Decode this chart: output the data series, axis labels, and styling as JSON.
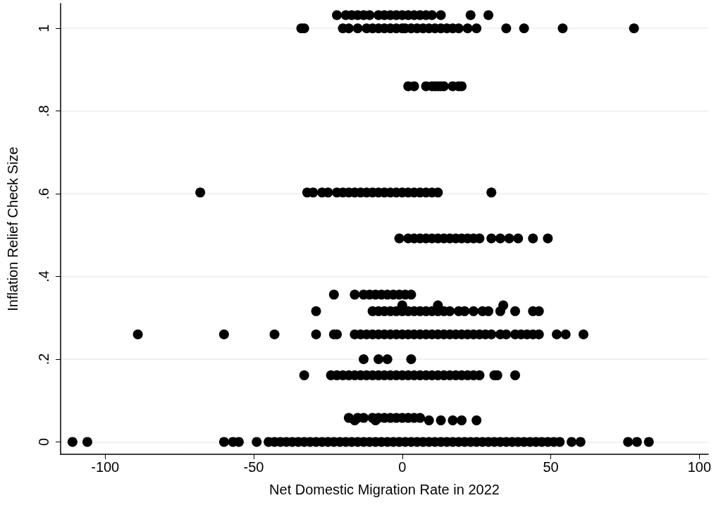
{
  "chart_data": {
    "type": "scatter",
    "xlabel": "Net Domestic Migration Rate in 2022",
    "ylabel": "Inflation Relief Check Size",
    "xlim": [
      -115,
      103
    ],
    "xticks": [
      -100,
      -50,
      0,
      50,
      100
    ],
    "ylim": [
      -0.03,
      1.06
    ],
    "yticks": [
      0,
      {
        "value": 0.2,
        "label": ".2"
      },
      {
        "value": 0.4,
        "label": ".4"
      },
      {
        "value": 0.6,
        "label": ".6"
      },
      {
        "value": 0.8,
        "label": ".8"
      },
      1
    ],
    "grid": "y",
    "marker": "circle",
    "series": [
      {
        "color": "#000000",
        "x": [
          -22,
          -19,
          -17,
          -15,
          -13,
          -11,
          -8,
          -6,
          -4,
          -2,
          0,
          2,
          4,
          6,
          8,
          10,
          13,
          23,
          29,
          -34,
          -33,
          -20,
          -18,
          -15,
          -12,
          -10,
          -8,
          -6,
          -4,
          -2,
          0,
          1,
          3,
          5,
          7,
          9,
          11,
          13,
          15,
          17,
          19,
          22,
          25,
          35,
          41,
          54,
          78,
          2,
          4,
          8,
          10,
          11,
          12,
          13,
          14,
          17,
          19,
          20,
          -68,
          -32,
          -30,
          -27,
          -25,
          -22,
          -20,
          -18,
          -16,
          -14,
          -12,
          -10,
          -8,
          -6,
          -4,
          -2,
          0,
          2,
          4,
          6,
          8,
          10,
          12,
          30,
          -1,
          2,
          4,
          6,
          8,
          10,
          12,
          14,
          16,
          18,
          20,
          22,
          24,
          26,
          30,
          33,
          36,
          39,
          44,
          49,
          -23,
          -16,
          -13,
          -11,
          -9,
          -7,
          -5,
          -3,
          -1,
          1,
          3,
          0,
          12,
          34,
          -29,
          -10,
          -8,
          -6,
          -4,
          -2,
          0,
          2,
          4,
          6,
          8,
          10,
          12,
          14,
          16,
          19,
          21,
          24,
          27,
          29,
          33,
          38,
          44,
          46,
          -89,
          -60,
          -43,
          -29,
          -23,
          -22,
          -16,
          -14,
          -12,
          -10,
          -8,
          -6,
          -4,
          -2,
          0,
          2,
          4,
          6,
          8,
          10,
          12,
          14,
          16,
          18,
          20,
          22,
          24,
          26,
          28,
          30,
          33,
          35,
          38,
          40,
          42,
          44,
          46,
          52,
          55,
          61,
          -13,
          -8,
          -5,
          3,
          -33,
          -24,
          -22,
          -20,
          -18,
          -16,
          -14,
          -12,
          -10,
          -8,
          -6,
          -4,
          -2,
          0,
          2,
          4,
          6,
          8,
          10,
          12,
          14,
          16,
          18,
          20,
          22,
          24,
          26,
          31,
          32,
          38,
          -18,
          -15,
          -13,
          -10,
          -8,
          -6,
          -4,
          -2,
          0,
          2,
          4,
          6,
          -16,
          -9,
          9,
          13,
          17,
          20,
          25,
          -111,
          -106,
          -60,
          -57,
          -55,
          -49,
          -45,
          -43,
          -41,
          -39,
          -37,
          -35,
          -33,
          -31,
          -29,
          -27,
          -25,
          -23,
          -21,
          -19,
          -17,
          -15,
          -13,
          -11,
          -9,
          -7,
          -5,
          -3,
          -1,
          1,
          3,
          5,
          7,
          9,
          11,
          13,
          15,
          17,
          19,
          21,
          23,
          25,
          27,
          29,
          31,
          33,
          35,
          37,
          39,
          41,
          43,
          45,
          47,
          49,
          51,
          53,
          57,
          60,
          76,
          79,
          83
        ],
        "values": [
          1.032,
          1.032,
          1.032,
          1.032,
          1.032,
          1.032,
          1.032,
          1.032,
          1.032,
          1.032,
          1.032,
          1.032,
          1.032,
          1.032,
          1.032,
          1.032,
          1.032,
          1.032,
          1.032,
          1,
          1,
          1,
          1,
          1,
          1,
          1,
          1,
          1,
          1,
          1,
          1,
          1,
          1,
          1,
          1,
          1,
          1,
          1,
          1,
          1,
          1,
          1,
          1,
          1,
          1,
          1,
          1,
          0.86,
          0.86,
          0.86,
          0.86,
          0.86,
          0.86,
          0.86,
          0.86,
          0.86,
          0.86,
          0.86,
          0.603,
          0.603,
          0.603,
          0.603,
          0.603,
          0.603,
          0.603,
          0.603,
          0.603,
          0.603,
          0.603,
          0.603,
          0.603,
          0.603,
          0.603,
          0.603,
          0.603,
          0.603,
          0.603,
          0.603,
          0.603,
          0.603,
          0.603,
          0.603,
          0.492,
          0.492,
          0.492,
          0.492,
          0.492,
          0.492,
          0.492,
          0.492,
          0.492,
          0.492,
          0.492,
          0.492,
          0.492,
          0.492,
          0.492,
          0.492,
          0.492,
          0.492,
          0.492,
          0.492,
          0.356,
          0.356,
          0.356,
          0.356,
          0.356,
          0.356,
          0.356,
          0.356,
          0.356,
          0.356,
          0.356,
          0.33,
          0.33,
          0.33,
          0.316,
          0.316,
          0.316,
          0.316,
          0.316,
          0.316,
          0.316,
          0.316,
          0.316,
          0.316,
          0.316,
          0.316,
          0.316,
          0.316,
          0.316,
          0.316,
          0.316,
          0.316,
          0.316,
          0.316,
          0.316,
          0.316,
          0.316,
          0.316,
          0.26,
          0.26,
          0.26,
          0.26,
          0.26,
          0.26,
          0.26,
          0.26,
          0.26,
          0.26,
          0.26,
          0.26,
          0.26,
          0.26,
          0.26,
          0.26,
          0.26,
          0.26,
          0.26,
          0.26,
          0.26,
          0.26,
          0.26,
          0.26,
          0.26,
          0.26,
          0.26,
          0.26,
          0.26,
          0.26,
          0.26,
          0.26,
          0.26,
          0.26,
          0.26,
          0.26,
          0.26,
          0.26,
          0.26,
          0.26,
          0.2,
          0.2,
          0.2,
          0.2,
          0.161,
          0.161,
          0.161,
          0.161,
          0.161,
          0.161,
          0.161,
          0.161,
          0.161,
          0.161,
          0.161,
          0.161,
          0.161,
          0.161,
          0.161,
          0.161,
          0.161,
          0.161,
          0.161,
          0.161,
          0.161,
          0.161,
          0.161,
          0.161,
          0.161,
          0.161,
          0.161,
          0.161,
          0.161,
          0.161,
          0.058,
          0.058,
          0.058,
          0.058,
          0.058,
          0.058,
          0.058,
          0.058,
          0.058,
          0.058,
          0.058,
          0.058,
          0.052,
          0.052,
          0.052,
          0.052,
          0.052,
          0.052,
          0.052,
          0,
          0,
          0,
          0,
          0,
          0,
          0,
          0,
          0,
          0,
          0,
          0,
          0,
          0,
          0,
          0,
          0,
          0,
          0,
          0,
          0,
          0,
          0,
          0,
          0,
          0,
          0,
          0,
          0,
          0,
          0,
          0,
          0,
          0,
          0,
          0,
          0,
          0,
          0,
          0,
          0,
          0,
          0,
          0,
          0,
          0,
          0,
          0,
          0,
          0,
          0,
          0,
          0,
          0,
          0,
          0,
          0,
          0,
          0,
          0,
          0
        ]
      }
    ]
  }
}
